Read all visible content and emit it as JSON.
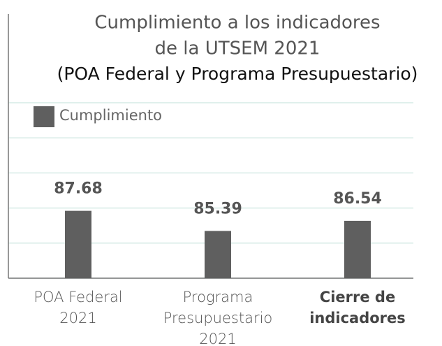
{
  "chart_data": {
    "type": "bar",
    "title": [
      "Cumplimiento a los indicadores",
      "de la UTSEM 2021"
    ],
    "subtitle": "(POA Federal y Programa Presupuestario)",
    "categories": [
      "POA Federal\n2021",
      "Programa\nPresupuestario\n2021",
      "Cierre de\nindicadores"
    ],
    "series": [
      {
        "name": "Cumplimiento",
        "color": "#5f5f5f",
        "values": [
          87.68,
          85.39,
          86.54
        ]
      }
    ],
    "ylim": [
      80,
      100
    ],
    "yticks": [
      80,
      84,
      88,
      92,
      96,
      100
    ],
    "grid": true,
    "legend": "top-left"
  }
}
